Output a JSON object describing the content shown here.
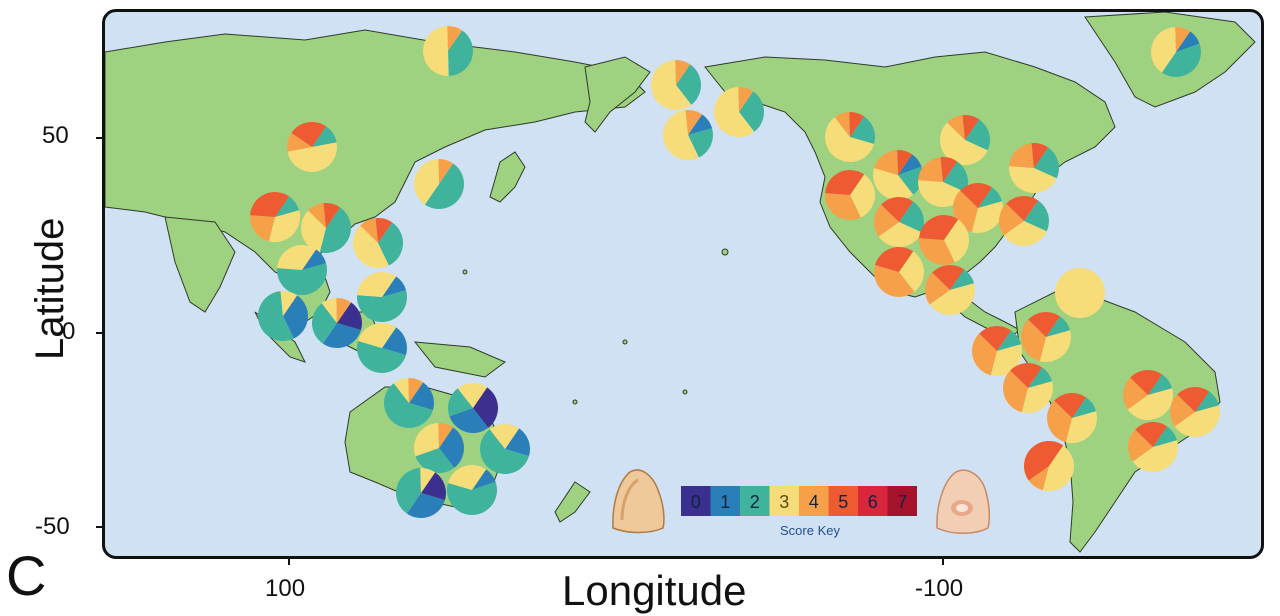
{
  "figure": {
    "panel_letter": "C",
    "x_axis_title": "Longitude",
    "y_axis_title": "Latitude",
    "x_ticks": [
      "100",
      "-100"
    ],
    "y_ticks": [
      "50",
      "0",
      "-50"
    ]
  },
  "score_key": {
    "label": "Score Key",
    "values": [
      "0",
      "1",
      "2",
      "3",
      "4",
      "5",
      "6",
      "7"
    ],
    "colors": [
      "#3b2f8f",
      "#2a7fb8",
      "#3fb39c",
      "#f6dd7a",
      "#f6a14a",
      "#ee5a32",
      "#d8263b",
      "#a5122c"
    ]
  },
  "colors": {
    "ocean": "#cfe1f2",
    "land": "#9fd280",
    "coast": "#2f3a2a"
  },
  "sites": [
    {
      "lon": 68,
      "lat": 73,
      "dist": [
        0,
        0,
        4,
        5,
        1,
        0,
        0,
        0
      ]
    },
    {
      "lon": 78,
      "lat": 48,
      "dist": [
        0,
        0,
        1,
        4,
        1,
        2,
        0,
        0
      ]
    },
    {
      "lon": 62,
      "lat": 30,
      "dist": [
        0,
        0,
        1,
        3,
        2,
        3,
        0,
        0
      ]
    },
    {
      "lon": 52,
      "lat": 28,
      "dist": [
        0,
        0,
        4,
        3,
        1,
        1,
        0,
        0
      ]
    },
    {
      "lon": 46,
      "lat": 25,
      "dist": [
        0,
        0,
        3,
        4,
        1,
        1,
        0,
        0
      ]
    },
    {
      "lon": 36,
      "lat": 17,
      "dist": [
        0,
        1,
        5,
        3,
        0,
        0,
        0,
        0
      ]
    },
    {
      "lon": 30,
      "lat": 5,
      "dist": [
        0,
        3,
        5,
        1,
        0,
        0,
        0,
        0
      ]
    },
    {
      "lon": 22,
      "lat": 2,
      "dist": [
        2,
        3,
        3,
        1,
        1,
        0,
        0,
        0
      ]
    },
    {
      "lon": 16,
      "lat": 12,
      "dist": [
        0,
        1,
        5,
        3,
        0,
        0,
        0,
        0
      ]
    },
    {
      "lon": 8,
      "lat": 1,
      "dist": [
        0,
        2,
        5,
        3,
        0,
        0,
        0,
        0
      ]
    },
    {
      "lon": 3,
      "lat": 38,
      "dist": [
        0,
        0,
        5,
        4,
        1,
        0,
        0,
        0
      ]
    },
    {
      "lon": 13,
      "lat": -19,
      "dist": [
        0,
        2,
        6,
        1,
        1,
        0,
        0,
        0
      ]
    },
    {
      "lon": -5,
      "lat": -20,
      "dist": [
        3,
        3,
        2,
        2,
        0,
        0,
        0,
        0
      ]
    },
    {
      "lon": -8,
      "lat": -28,
      "dist": [
        0,
        3,
        3,
        3,
        1,
        0,
        0,
        0
      ]
    },
    {
      "lon": -20,
      "lat": -29,
      "dist": [
        0,
        2,
        6,
        2,
        0,
        0,
        0,
        0
      ]
    },
    {
      "lon": -14,
      "lat": -40,
      "dist": [
        2,
        3,
        4,
        1,
        0,
        0,
        0,
        0
      ]
    },
    {
      "lon": 0,
      "lat": -41,
      "dist": [
        0,
        1,
        6,
        3,
        0,
        0,
        0,
        0
      ]
    },
    {
      "lon": -42,
      "lat": 65,
      "dist": [
        0,
        1,
        4,
        4,
        1,
        0,
        0,
        0
      ]
    },
    {
      "lon": -55,
      "lat": 61,
      "dist": [
        0,
        0,
        3,
        6,
        1,
        0,
        0,
        0
      ]
    },
    {
      "lon": -60,
      "lat": 51,
      "dist": [
        0,
        0,
        3,
        6,
        1,
        0,
        0,
        0
      ]
    },
    {
      "lon": -78,
      "lat": 58,
      "dist": [
        0,
        1,
        2,
        5,
        1,
        0,
        0,
        0
      ]
    },
    {
      "lon": -118,
      "lat": 50,
      "dist": [
        0,
        0,
        2,
        6,
        1,
        1,
        0,
        0
      ]
    },
    {
      "lon": -135,
      "lat": 54,
      "dist": [
        0,
        1,
        2,
        4,
        2,
        1,
        0,
        0
      ]
    },
    {
      "lon": -102,
      "lat": 49,
      "dist": [
        0,
        0,
        2,
        5,
        1,
        1,
        0,
        0
      ]
    },
    {
      "lon": -118,
      "lat": 35,
      "dist": [
        0,
        0,
        0,
        3,
        3,
        3,
        0,
        0
      ]
    },
    {
      "lon": -114,
      "lat": 42,
      "dist": [
        0,
        0,
        2,
        3,
        2,
        2,
        0,
        0
      ]
    },
    {
      "lon": -107,
      "lat": 44,
      "dist": [
        0,
        0,
        2,
        4,
        2,
        1,
        0,
        0
      ]
    },
    {
      "lon": -101,
      "lat": 38,
      "dist": [
        0,
        0,
        1,
        3,
        3,
        2,
        0,
        0
      ]
    },
    {
      "lon": -89,
      "lat": 42,
      "dist": [
        0,
        0,
        2,
        4,
        2,
        1,
        0,
        0
      ]
    },
    {
      "lon": -79,
      "lat": 30,
      "dist": [
        0,
        0,
        2,
        3,
        2,
        2,
        0,
        0
      ]
    },
    {
      "lon": -93,
      "lat": 34,
      "dist": [
        0,
        0,
        0,
        3,
        3,
        3,
        0,
        0
      ]
    },
    {
      "lon": -99,
      "lat": 27,
      "dist": [
        0,
        0,
        0,
        3,
        4,
        3,
        0,
        0
      ]
    },
    {
      "lon": -101,
      "lat": 18,
      "dist": [
        0,
        0,
        1,
        4,
        2,
        2,
        0,
        0
      ]
    },
    {
      "lon": -92,
      "lat": 7,
      "dist": [
        0,
        0,
        1,
        3,
        3,
        2,
        0,
        0
      ]
    },
    {
      "lon": -68,
      "lat": 10,
      "dist": [
        0,
        0,
        0,
        10,
        0,
        0,
        0,
        0
      ]
    },
    {
      "lon": -87,
      "lat": -2,
      "dist": [
        0,
        0,
        1,
        3,
        3,
        2,
        0,
        0
      ]
    },
    {
      "lon": -78,
      "lat": 0,
      "dist": [
        0,
        0,
        1,
        3,
        3,
        2,
        0,
        0
      ]
    },
    {
      "lon": -79,
      "lat": -12,
      "dist": [
        0,
        0,
        1,
        3,
        3,
        2,
        0,
        0
      ]
    },
    {
      "lon": -72,
      "lat": -22,
      "dist": [
        0,
        0,
        1,
        4,
        2,
        2,
        0,
        0
      ]
    },
    {
      "lon": -77,
      "lat": -34,
      "dist": [
        0,
        0,
        1,
        4,
        2,
        2,
        0,
        0
      ]
    },
    {
      "lon": -56,
      "lat": -16,
      "dist": [
        0,
        0,
        1,
        4,
        2,
        2,
        0,
        0
      ]
    },
    {
      "lon": -41,
      "lat": -20,
      "dist": [
        0,
        0,
        1,
        4,
        2,
        2,
        0,
        0
      ]
    },
    {
      "lon": -54,
      "lat": -29,
      "dist": [
        0,
        0,
        0,
        4,
        1,
        4,
        0,
        0
      ]
    }
  ]
}
